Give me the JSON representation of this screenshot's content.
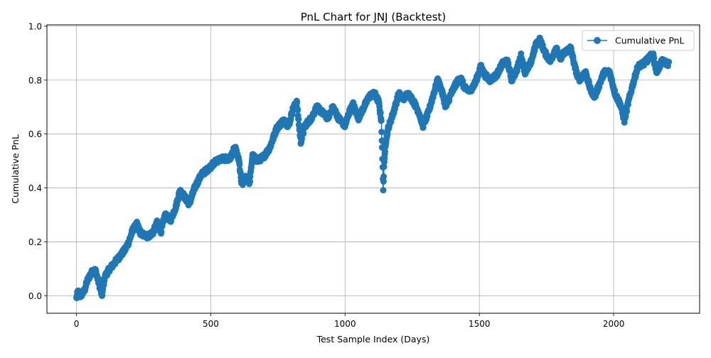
{
  "chart_data": {
    "type": "line",
    "title": "PnL Chart for JNJ (Backtest)",
    "xlabel": "Test Sample Index (Days)",
    "ylabel": "Cumulative PnL",
    "xlim": [
      -110,
      2320
    ],
    "ylim": [
      -0.065,
      1.005
    ],
    "x_ticks": [
      0,
      500,
      1000,
      1500,
      2000
    ],
    "y_ticks": [
      0.0,
      0.2,
      0.4,
      0.6,
      0.8,
      1.0
    ],
    "x_tick_labels": [
      "0",
      "500",
      "1000",
      "1500",
      "2000"
    ],
    "y_tick_labels": [
      "0.0",
      "0.2",
      "0.4",
      "0.6",
      "0.8",
      "1.0"
    ],
    "grid": true,
    "legend_position": "top-right",
    "series": [
      {
        "name": "Cumulative PnL",
        "color": "#1f77b4",
        "marker": "circle",
        "x_start": 0,
        "x_end": 2205,
        "anchors": [
          [
            0,
            -0.01
          ],
          [
            5,
            0.015
          ],
          [
            15,
            0.0
          ],
          [
            30,
            0.02
          ],
          [
            40,
            0.055
          ],
          [
            55,
            0.085
          ],
          [
            70,
            0.095
          ],
          [
            80,
            0.06
          ],
          [
            95,
            0.0
          ],
          [
            105,
            0.07
          ],
          [
            120,
            0.095
          ],
          [
            140,
            0.12
          ],
          [
            160,
            0.145
          ],
          [
            180,
            0.17
          ],
          [
            195,
            0.2
          ],
          [
            210,
            0.245
          ],
          [
            225,
            0.265
          ],
          [
            240,
            0.23
          ],
          [
            265,
            0.22
          ],
          [
            285,
            0.235
          ],
          [
            300,
            0.27
          ],
          [
            315,
            0.24
          ],
          [
            330,
            0.3
          ],
          [
            350,
            0.28
          ],
          [
            370,
            0.33
          ],
          [
            385,
            0.39
          ],
          [
            400,
            0.37
          ],
          [
            420,
            0.34
          ],
          [
            440,
            0.4
          ],
          [
            465,
            0.45
          ],
          [
            490,
            0.47
          ],
          [
            520,
            0.5
          ],
          [
            545,
            0.51
          ],
          [
            570,
            0.505
          ],
          [
            590,
            0.55
          ],
          [
            605,
            0.5
          ],
          [
            615,
            0.41
          ],
          [
            630,
            0.44
          ],
          [
            645,
            0.42
          ],
          [
            655,
            0.52
          ],
          [
            675,
            0.5
          ],
          [
            700,
            0.52
          ],
          [
            720,
            0.55
          ],
          [
            745,
            0.62
          ],
          [
            770,
            0.65
          ],
          [
            790,
            0.63
          ],
          [
            805,
            0.69
          ],
          [
            820,
            0.72
          ],
          [
            835,
            0.57
          ],
          [
            850,
            0.63
          ],
          [
            875,
            0.66
          ],
          [
            895,
            0.7
          ],
          [
            915,
            0.68
          ],
          [
            935,
            0.66
          ],
          [
            955,
            0.7
          ],
          [
            975,
            0.66
          ],
          [
            1000,
            0.63
          ],
          [
            1015,
            0.68
          ],
          [
            1030,
            0.71
          ],
          [
            1050,
            0.66
          ],
          [
            1070,
            0.7
          ],
          [
            1090,
            0.74
          ],
          [
            1110,
            0.75
          ],
          [
            1125,
            0.72
          ],
          [
            1135,
            0.65
          ],
          [
            1142,
            0.4
          ],
          [
            1145,
            0.47
          ],
          [
            1150,
            0.56
          ],
          [
            1160,
            0.62
          ],
          [
            1180,
            0.68
          ],
          [
            1200,
            0.75
          ],
          [
            1215,
            0.73
          ],
          [
            1235,
            0.75
          ],
          [
            1255,
            0.72
          ],
          [
            1275,
            0.68
          ],
          [
            1290,
            0.63
          ],
          [
            1310,
            0.68
          ],
          [
            1330,
            0.75
          ],
          [
            1345,
            0.8
          ],
          [
            1360,
            0.76
          ],
          [
            1375,
            0.7
          ],
          [
            1395,
            0.75
          ],
          [
            1415,
            0.79
          ],
          [
            1430,
            0.81
          ],
          [
            1445,
            0.77
          ],
          [
            1465,
            0.76
          ],
          [
            1485,
            0.79
          ],
          [
            1505,
            0.85
          ],
          [
            1520,
            0.82
          ],
          [
            1540,
            0.8
          ],
          [
            1565,
            0.82
          ],
          [
            1585,
            0.86
          ],
          [
            1605,
            0.87
          ],
          [
            1620,
            0.8
          ],
          [
            1640,
            0.84
          ],
          [
            1655,
            0.89
          ],
          [
            1670,
            0.83
          ],
          [
            1690,
            0.86
          ],
          [
            1710,
            0.93
          ],
          [
            1725,
            0.95
          ],
          [
            1745,
            0.9
          ],
          [
            1765,
            0.87
          ],
          [
            1785,
            0.92
          ],
          [
            1800,
            0.88
          ],
          [
            1815,
            0.9
          ],
          [
            1840,
            0.92
          ],
          [
            1855,
            0.85
          ],
          [
            1870,
            0.8
          ],
          [
            1895,
            0.83
          ],
          [
            1915,
            0.76
          ],
          [
            1930,
            0.74
          ],
          [
            1945,
            0.78
          ],
          [
            1965,
            0.83
          ],
          [
            1985,
            0.83
          ],
          [
            2005,
            0.75
          ],
          [
            2025,
            0.71
          ],
          [
            2040,
            0.65
          ],
          [
            2055,
            0.72
          ],
          [
            2070,
            0.78
          ],
          [
            2090,
            0.85
          ],
          [
            2110,
            0.86
          ],
          [
            2130,
            0.88
          ],
          [
            2145,
            0.9
          ],
          [
            2160,
            0.83
          ],
          [
            2180,
            0.87
          ],
          [
            2205,
            0.86
          ]
        ]
      }
    ]
  }
}
